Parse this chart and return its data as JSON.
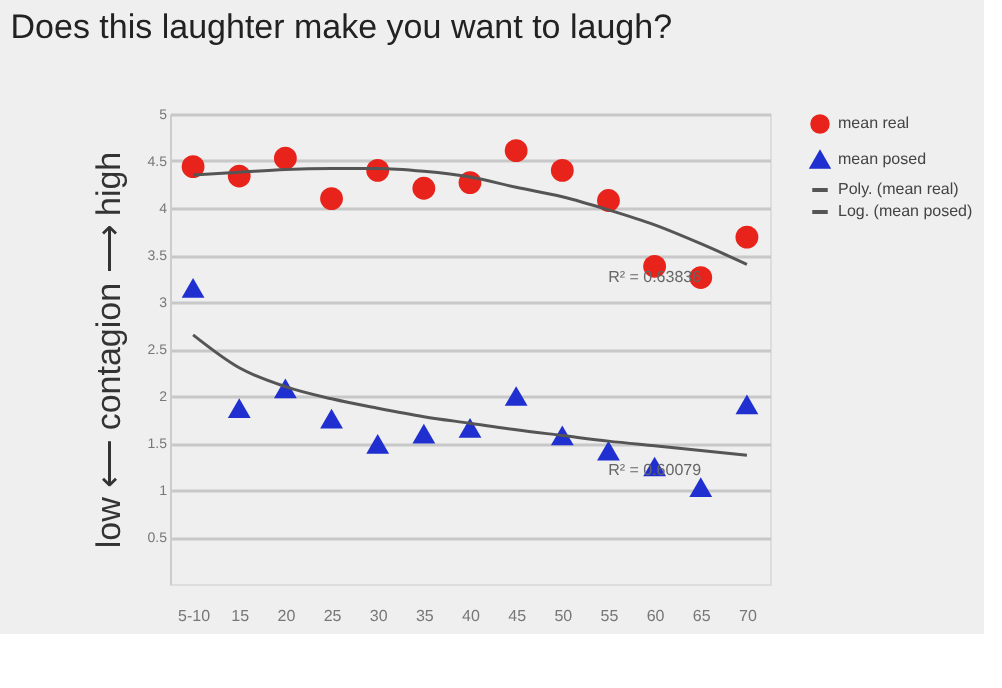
{
  "chart_data": {
    "type": "scatter",
    "title": "Does this laughter make you want to laugh?",
    "ylabel": "low ⟵ contagion ⟶ high",
    "categories": [
      "5-10",
      "15",
      "20",
      "25",
      "30",
      "35",
      "40",
      "45",
      "50",
      "55",
      "60",
      "65",
      "70"
    ],
    "series": [
      {
        "name": "mean real",
        "marker": "circle",
        "color": "#e8231b",
        "values": [
          4.44,
          4.34,
          4.53,
          4.1,
          4.4,
          4.21,
          4.27,
          4.61,
          4.4,
          4.08,
          3.38,
          3.26,
          3.69
        ]
      },
      {
        "name": "mean posed",
        "marker": "triangle",
        "color": "#1f2fd0",
        "values": [
          3.15,
          1.87,
          2.08,
          1.76,
          1.49,
          1.6,
          1.66,
          2.0,
          1.58,
          1.42,
          1.25,
          1.03,
          1.91
        ]
      },
      {
        "name": "Poly. (mean real)",
        "type": "line",
        "marker": "none",
        "color": "#555555",
        "values": [
          4.35,
          4.38,
          4.41,
          4.42,
          4.42,
          4.39,
          4.33,
          4.22,
          4.12,
          3.98,
          3.82,
          3.62,
          3.4
        ]
      },
      {
        "name": "Log. (mean posed)",
        "type": "line",
        "marker": "none",
        "color": "#555555",
        "values": [
          2.65,
          2.3,
          2.1,
          1.97,
          1.87,
          1.78,
          1.71,
          1.64,
          1.58,
          1.52,
          1.47,
          1.42,
          1.37
        ]
      }
    ],
    "annotations": [
      {
        "text": "R² = 0.63836",
        "x": "60",
        "y": 3.4
      },
      {
        "text": "R² = 0.60079",
        "x": "60",
        "y": 1.35
      }
    ],
    "ylim": [
      0,
      5
    ],
    "yticks": [
      0.5,
      1,
      1.5,
      2,
      2.5,
      3,
      3.5,
      4,
      4.5,
      5
    ],
    "grid": "y",
    "legend": "right"
  }
}
